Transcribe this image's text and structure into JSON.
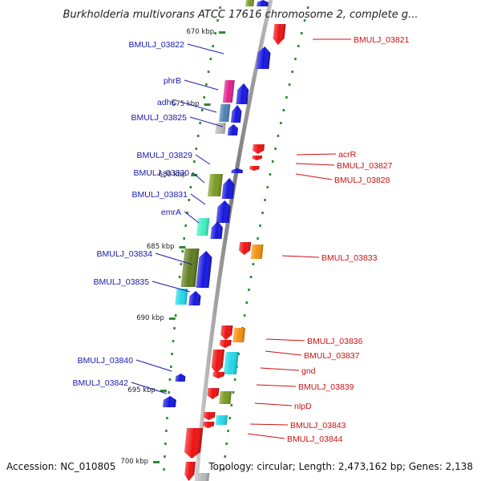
{
  "header": {
    "title": "Burkholderia multivorans ATCC 17616 chromosome 2, complete g..."
  },
  "footer": {
    "accession": "Accession: NC_010805",
    "topology": "Topology: circular; Length: 2,473,162 bp; Genes: 2,138"
  },
  "ruler_labels": [
    "670 kbp",
    "675 kbp",
    "680 kbp",
    "685 kbp",
    "690 kbp",
    "695 kbp",
    "700 kbp"
  ],
  "colors": {
    "backbone": "#888888",
    "tick": "#2e8b2e",
    "forward_label": "#1a1aa8",
    "reverse_label": "#cc1111",
    "blue": "#1515e0",
    "red": "#ee1111",
    "magenta": "#e0208a",
    "steel": "#4a82b4",
    "gray": "#b8b8b8",
    "olive": "#7a9a20",
    "darkolive": "#5f7d1f",
    "aqua": "#3ff0c0",
    "cyan": "#22d8e8",
    "orange": "#f59010"
  },
  "genes_forward": [
    "BMULJ_03822",
    "phrB",
    "adhC",
    "BMULJ_03825",
    "BMULJ_03829",
    "BMULJ_03830",
    "BMULJ_03831",
    "emrA",
    "BMULJ_03834",
    "BMULJ_03835",
    "BMULJ_03840",
    "BMULJ_03842"
  ],
  "genes_reverse": [
    "BMULJ_03821",
    "acrR",
    "BMULJ_03827",
    "BMULJ_03828",
    "BMULJ_03833",
    "BMULJ_03836",
    "BMULJ_03837",
    "gnd",
    "BMULJ_03839",
    "nlpD",
    "BMULJ_03843",
    "BMULJ_03844"
  ]
}
